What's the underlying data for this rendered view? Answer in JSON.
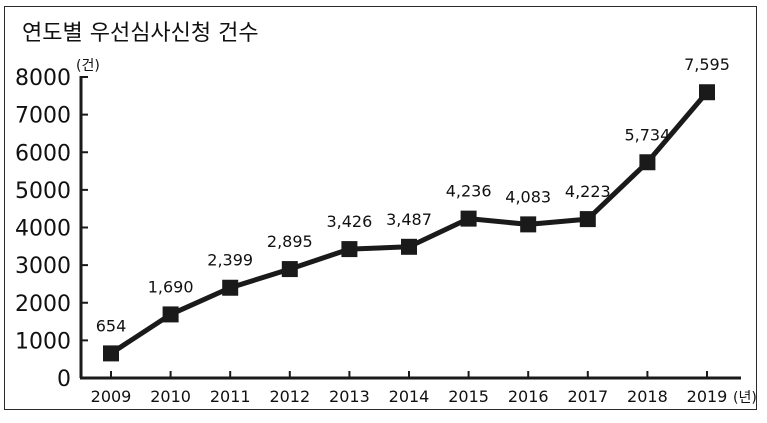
{
  "chart_data": {
    "type": "line",
    "title": "연도별 우선심사신청 건수",
    "y_unit": "(건)",
    "x_unit": "(년)",
    "categories": [
      "2009",
      "2010",
      "2011",
      "2012",
      "2013",
      "2014",
      "2015",
      "2016",
      "2017",
      "2018",
      "2019"
    ],
    "values": [
      654,
      1690,
      2399,
      2895,
      3426,
      3487,
      4236,
      4083,
      4223,
      5734,
      7595
    ],
    "data_labels": [
      "654",
      "1,690",
      "2,399",
      "2,895",
      "3,426",
      "3,487",
      "4,236",
      "4,083",
      "4,223",
      "5,734",
      "7,595"
    ],
    "yticks": [
      "0",
      "1000",
      "2000",
      "3000",
      "4000",
      "5000",
      "6000",
      "7000",
      "8000"
    ],
    "ylim": [
      0,
      8000
    ],
    "grid": false,
    "legend": "none",
    "line_color": "#1a1a1a",
    "marker_color": "#1a1a1a"
  }
}
